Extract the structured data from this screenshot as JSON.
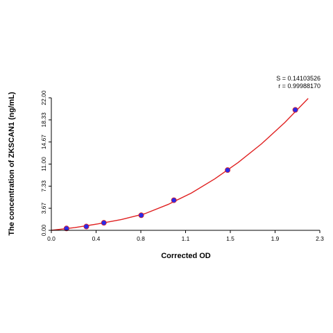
{
  "chart_data": {
    "type": "scatter",
    "xlabel": "Corrected OD",
    "ylabel": "The concentration of ZKSCAN1 (ng/mL)",
    "xlim": [
      0.0,
      2.3
    ],
    "ylim": [
      0.0,
      22.0
    ],
    "x_ticks": [
      "0.0",
      "0.4",
      "0.8",
      "1.1",
      "1.5",
      "1.9",
      "2.3"
    ],
    "y_ticks": [
      "0.00",
      "3.67",
      "7.33",
      "11.00",
      "14.67",
      "18.33",
      "22.00"
    ],
    "stats": {
      "s": "S = 0.14103526",
      "r": "r = 0.99988170"
    },
    "series": [
      {
        "x": [
          0.13,
          0.3,
          0.45,
          0.77,
          1.05,
          1.51,
          2.09
        ],
        "y": [
          0.31,
          0.63,
          1.25,
          2.5,
          5.0,
          10.0,
          20.0
        ]
      }
    ],
    "fit_curve": {
      "x": [
        0.0,
        0.2,
        0.4,
        0.6,
        0.8,
        1.0,
        1.2,
        1.4,
        1.6,
        1.8,
        2.0,
        2.2
      ],
      "y": [
        0.0,
        0.45,
        1.07,
        1.8,
        2.75,
        4.3,
        6.2,
        8.55,
        11.25,
        14.35,
        17.9,
        21.9
      ]
    },
    "colors": {
      "points": "#2a2ae8",
      "curve": "#e02020",
      "axis": "#000000"
    },
    "grid": false
  }
}
